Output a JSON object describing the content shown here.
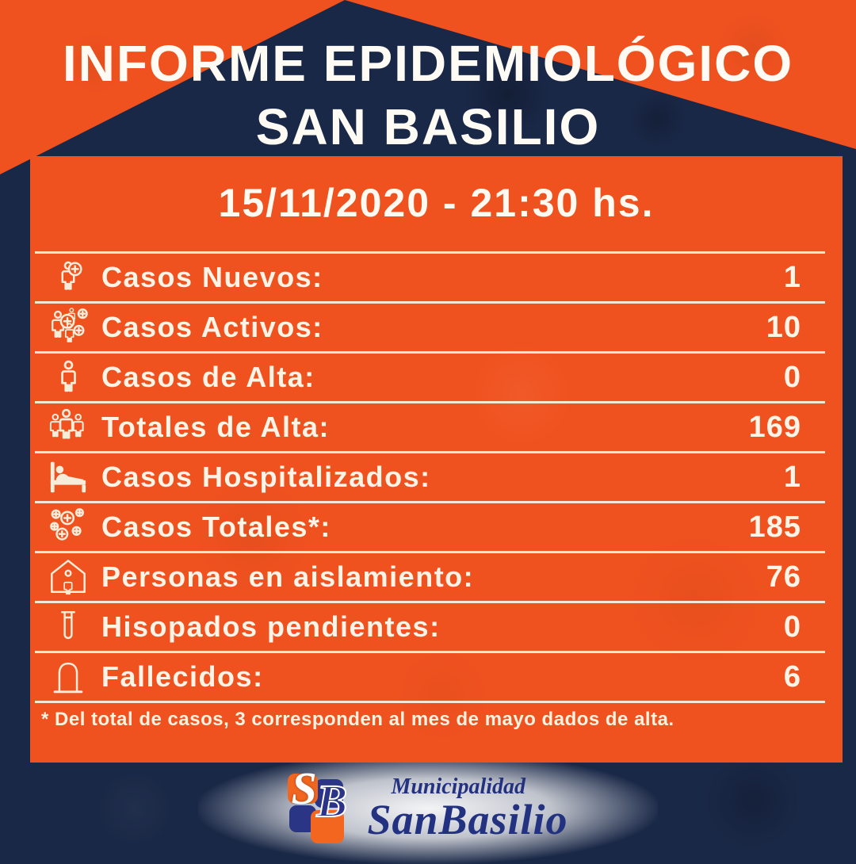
{
  "title": {
    "line1": "INFORME EPIDEMIOLÓGICO",
    "line2": "SAN BASILIO"
  },
  "report": {
    "datetime": "15/11/2020 - 21:30 hs.",
    "rows": [
      {
        "icon": "person-plus-icon",
        "label": "Casos Nuevos:",
        "value": "1"
      },
      {
        "icon": "people-plus-icon",
        "label": "Casos Activos:",
        "value": "10"
      },
      {
        "icon": "person-icon",
        "label": "Casos de Alta:",
        "value": "0"
      },
      {
        "icon": "people-icon",
        "label": "Totales de Alta:",
        "value": "169"
      },
      {
        "icon": "hospital-bed-icon",
        "label": "Casos Hospitalizados:",
        "value": "1"
      },
      {
        "icon": "virus-cluster-icon",
        "label": "Casos Totales*:",
        "value": "185"
      },
      {
        "icon": "person-home-icon",
        "label": "Personas en aislamiento:",
        "value": "76"
      },
      {
        "icon": "test-tube-icon",
        "label": "Hisopados pendientes:",
        "value": "0"
      },
      {
        "icon": "tombstone-icon",
        "label": "Fallecidos:",
        "value": "6"
      }
    ],
    "footnote": "* Del total de casos, 3 corresponden al mes de mayo dados de alta."
  },
  "footer": {
    "monogram": {
      "letter_s": "S",
      "letter_b": "B"
    },
    "org_name_top": "Municipalidad",
    "org_name_bottom": "SanBasilio"
  },
  "colors": {
    "orange": "#f0521f",
    "navy": "#1a2847",
    "separator_cream": "#f2e8d4",
    "text_cream": "#fbf4e7",
    "logo_blue": "#233181",
    "logo_orange": "#f2661f"
  }
}
